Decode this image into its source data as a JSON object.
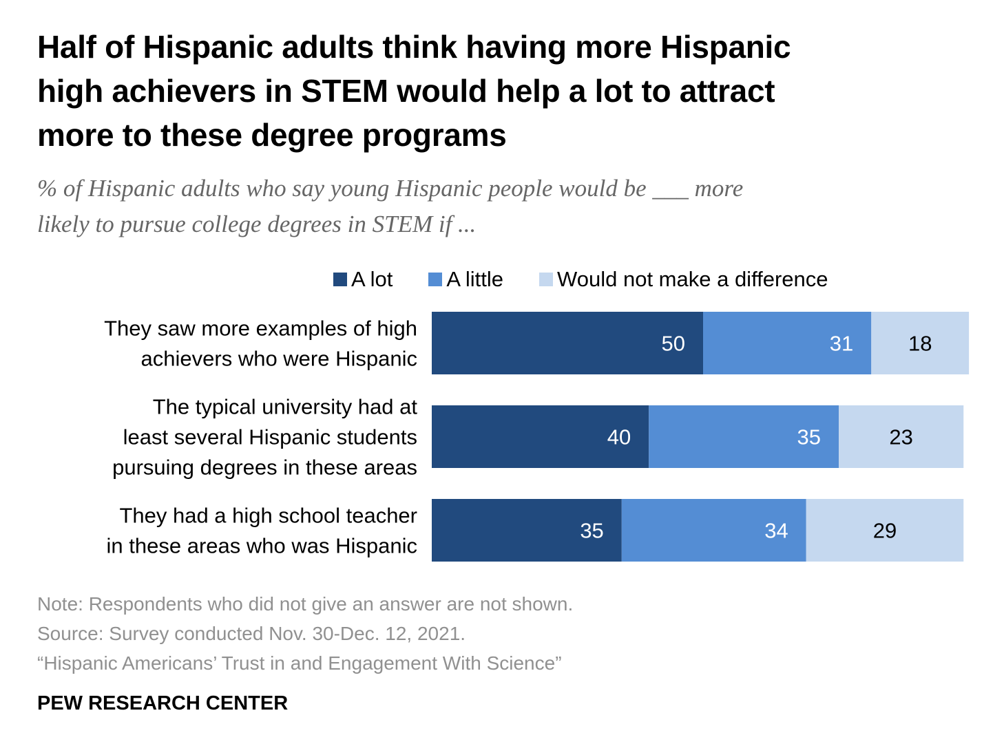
{
  "chart_data": {
    "type": "bar",
    "orientation": "horizontal",
    "stacked": true,
    "title": "Half of Hispanic adults think having more Hispanic high achievers in STEM would help a lot to attract more to these degree programs",
    "subtitle": "% of Hispanic adults who say young Hispanic people would be ___ more likely to pursue college degrees in STEM if ...",
    "subtitle_lines": [
      "% of Hispanic adults who say young Hispanic people would be ___ more",
      "likely to pursue college degrees in STEM if ..."
    ],
    "title_lines": [
      "Half of Hispanic adults think having more Hispanic",
      "high achievers in STEM would help a lot to attract",
      "more to these degree programs"
    ],
    "categories": [
      "They saw more examples of high achievers who were Hispanic",
      "The typical university had at least several Hispanic students pursuing degrees in these areas",
      "They had a high school teacher in these areas who was Hispanic"
    ],
    "category_lines": [
      [
        "They saw more examples of high",
        "achievers who were Hispanic"
      ],
      [
        "The typical university had at",
        "least several Hispanic students",
        "pursuing degrees in these areas"
      ],
      [
        "They had a high school teacher",
        "in these areas who was Hispanic"
      ]
    ],
    "series": [
      {
        "name": "A lot",
        "color": "#214a7e",
        "label_color": "#ffffff",
        "values": [
          50,
          40,
          35
        ]
      },
      {
        "name": "A little",
        "color": "#548dd4",
        "label_color": "#ffffff",
        "values": [
          31,
          35,
          34
        ]
      },
      {
        "name": "Would not make a difference",
        "color": "#c5d8ef",
        "label_color": "#000000",
        "values": [
          18,
          23,
          29
        ]
      }
    ],
    "xlabel": "",
    "ylabel": "",
    "xlim": [
      0,
      100
    ],
    "grid": false,
    "legend_position": "top-right"
  },
  "legend": {
    "items": [
      {
        "label": "A lot",
        "color": "#214a7e"
      },
      {
        "label": "A little",
        "color": "#548dd4"
      },
      {
        "label": "Would not make a difference",
        "color": "#c5d8ef"
      }
    ]
  },
  "footer": {
    "note": "Note: Respondents who did not give an answer are not shown.",
    "source": "Source: Survey conducted Nov. 30-Dec. 12, 2021.",
    "report": "“Hispanic Americans’ Trust in and Engagement With Science”",
    "brand": "PEW RESEARCH CENTER"
  }
}
